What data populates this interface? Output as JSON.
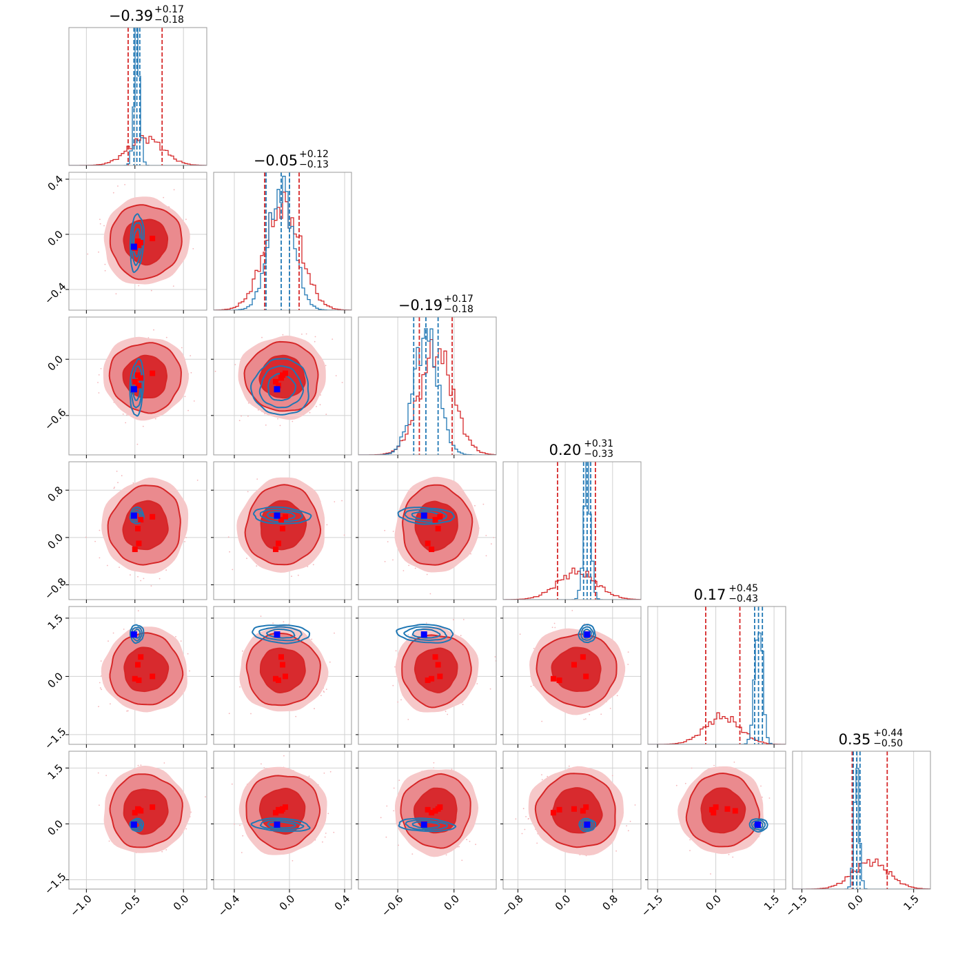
{
  "chart_data": {
    "type": "corner",
    "n_params": 6,
    "titles": [
      {
        "median": "−0.39",
        "plus": "+0.17",
        "minus": "−0.18"
      },
      {
        "median": "−0.05",
        "plus": "+0.12",
        "minus": "−0.13"
      },
      {
        "median": "−0.19",
        "plus": "+0.17",
        "minus": "−0.18"
      },
      {
        "median": "0.20",
        "plus": "+0.31",
        "minus": "−0.33"
      },
      {
        "median": "0.17",
        "plus": "+0.45",
        "minus": "−0.43"
      },
      {
        "median": "0.35",
        "plus": "+0.44",
        "minus": "−0.50"
      }
    ],
    "ranges": [
      [
        -1.18,
        0.24
      ],
      [
        -0.55,
        0.45
      ],
      [
        -1.02,
        0.45
      ],
      [
        -1.05,
        1.28
      ],
      [
        -1.75,
        1.8
      ],
      [
        -1.75,
        1.95
      ]
    ],
    "ticks": [
      {
        "values": [
          -1.0,
          -0.5,
          0.0
        ],
        "labels": [
          "−1.0",
          "−0.5",
          "0.0"
        ]
      },
      {
        "values": [
          -0.4,
          0.0,
          0.4
        ],
        "labels": [
          "−0.4",
          "0.0",
          "0.4"
        ]
      },
      {
        "values": [
          -0.6,
          0.0
        ],
        "labels": [
          "−0.6",
          "0.0"
        ]
      },
      {
        "values": [
          -0.8,
          0.0,
          0.8
        ],
        "labels": [
          "−0.8",
          "0.0",
          "0.8"
        ]
      },
      {
        "values": [
          -1.5,
          0.0,
          1.5
        ],
        "labels": [
          "−1.5",
          "0.0",
          "1.5"
        ]
      },
      {
        "values": [
          -1.5,
          0.0,
          1.5
        ],
        "labels": [
          "−1.5",
          "0.0",
          "1.5"
        ]
      }
    ],
    "grid": true,
    "series": [
      {
        "color": "#d62728",
        "means": [
          -0.39,
          -0.05,
          -0.19,
          0.2,
          0.17,
          0.35
        ],
        "sigmas": [
          0.18,
          0.13,
          0.18,
          0.33,
          0.45,
          0.48
        ],
        "quantiles": [
          [
            -0.57,
            -0.22
          ],
          [
            -0.18,
            0.07
          ],
          [
            -0.37,
            -0.02
          ],
          [
            -0.13,
            0.51
          ],
          [
            -0.26,
            0.62
          ],
          [
            -0.15,
            0.79
          ]
        ],
        "filled": true
      },
      {
        "color": "#1f77b4",
        "means": [
          -0.48,
          -0.06,
          -0.3,
          0.37,
          1.1,
          -0.03
        ],
        "sigmas": [
          0.03,
          0.09,
          0.13,
          0.06,
          0.1,
          0.07
        ],
        "quantiles": [
          [
            -0.51,
            -0.45
          ],
          [
            -0.17,
            0.0
          ],
          [
            -0.43,
            -0.17
          ],
          [
            0.31,
            0.43
          ],
          [
            1.0,
            1.2
          ],
          [
            -0.12,
            0.06
          ]
        ],
        "filled": false
      }
    ],
    "truth_points": {
      "color": "#0000ff",
      "values": [
        -0.51,
        -0.09,
        -0.32,
        0.37,
        1.08,
        -0.02
      ]
    },
    "red_markers": [
      [
        -0.47,
        -0.05,
        -0.17,
        0.15,
        0.3,
        0.4
      ],
      [
        -0.44,
        -0.06,
        -0.2,
        0.3,
        0.5,
        0.35
      ],
      [
        -0.32,
        -0.03,
        -0.15,
        0.35,
        0.0,
        0.45
      ],
      [
        -0.5,
        -0.1,
        -0.24,
        -0.2,
        -0.06,
        0.3
      ],
      [
        -0.46,
        -0.08,
        -0.28,
        -0.1,
        -0.1,
        0.38
      ]
    ]
  }
}
